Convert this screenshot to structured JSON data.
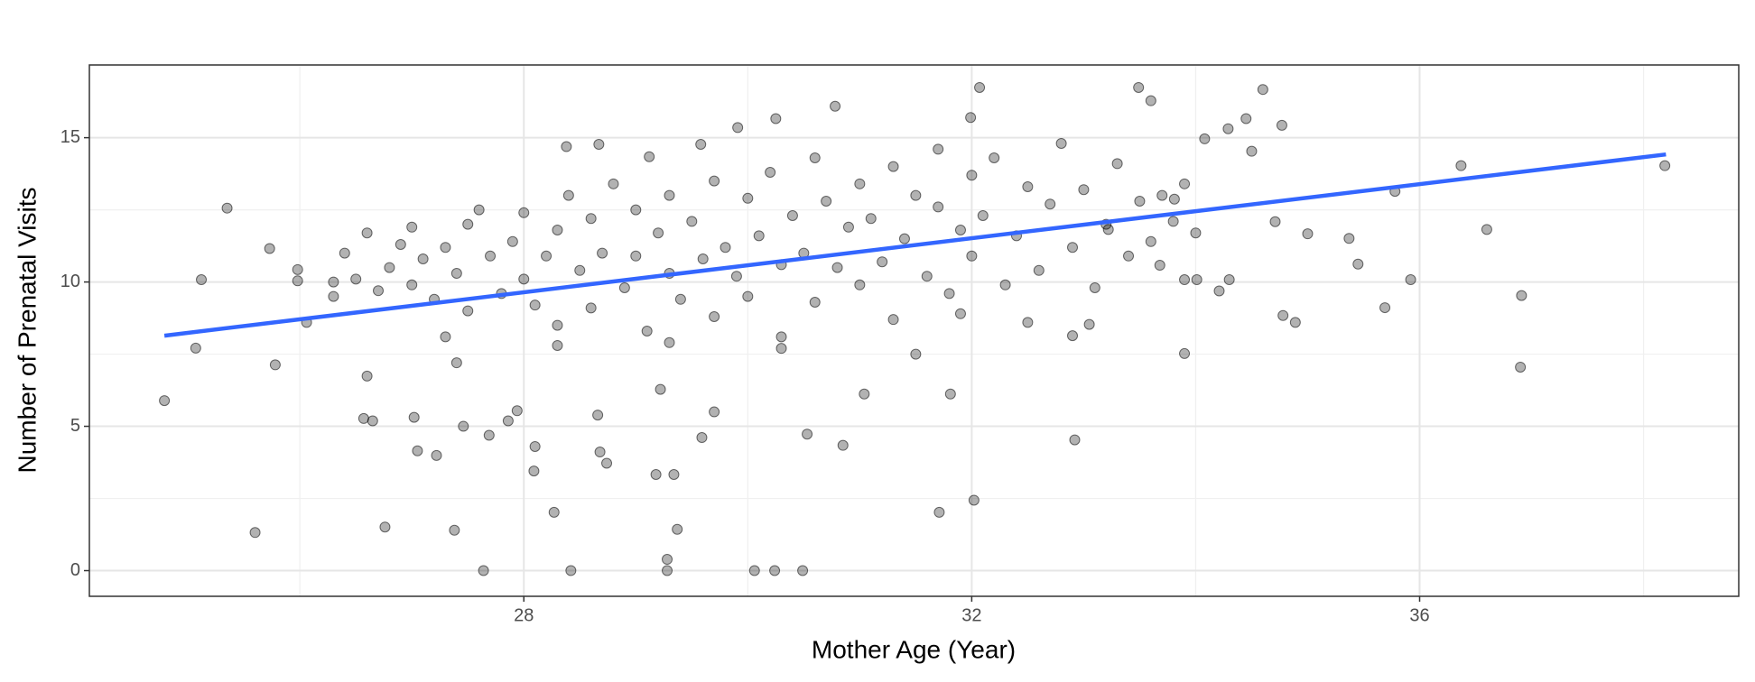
{
  "chart_data": {
    "type": "scatter",
    "x_label": "Mother Age (Year)",
    "y_label": "Number of Prenatal Visits",
    "xlim": [
      24.12,
      38.85
    ],
    "ylim": [
      -0.89,
      17.52
    ],
    "xticks": [
      28,
      32,
      36
    ],
    "yticks": [
      0,
      5,
      10,
      15
    ],
    "grid": true,
    "series": [
      {
        "color": "#000000",
        "x": [
          24.79,
          25.07,
          25.12,
          25.35,
          25.6,
          25.73,
          25.78,
          25.98,
          25.98,
          26.06,
          26.3,
          26.76,
          26.57,
          26.65,
          26.6,
          27.02,
          27.05,
          27.22,
          27.38,
          27.64,
          28.42,
          27.46,
          27.69,
          27.86,
          27.94,
          28.09,
          28.1,
          28.27,
          28.68,
          28.74,
          28.66,
          29.18,
          29.34,
          29.28,
          29.28,
          29.37,
          29.22,
          29.59,
          29.7,
          30.06,
          30.24,
          30.49,
          30.53,
          30.85,
          31.04,
          31.71,
          32.02,
          31.81,
          32.92,
          33.9,
          34.71,
          35.0,
          35.37,
          35.45,
          35.69,
          35.78,
          35.92,
          36.37,
          36.6,
          36.91,
          36.9,
          38.19,
          34.78,
          34.89,
          34.6,
          33.49,
          33.6,
          32.07,
          30.78,
          30.25,
          29.91,
          31.99,
          34.45,
          34.77,
          34.29,
          34.08,
          34.5,
          28.38,
          28.67,
          29.12,
          29.58,
          33.81,
          34.01,
          34.3,
          34.21,
          33.68,
          33.9,
          33.22,
          33.05,
          32.9,
          26.3,
          26.4,
          26.5,
          26.6,
          26.7,
          26.8,
          26.9,
          27.0,
          27.0,
          27.1,
          27.2,
          27.3,
          27.3,
          27.4,
          27.5,
          27.5,
          27.6,
          27.7,
          27.8,
          27.9,
          28.0,
          28.0,
          28.1,
          28.2,
          28.3,
          28.3,
          28.4,
          28.5,
          28.6,
          28.6,
          28.7,
          28.8,
          28.9,
          29.0,
          29.0,
          29.1,
          29.2,
          29.3,
          29.3,
          29.4,
          29.5,
          29.6,
          29.7,
          29.7,
          29.8,
          29.9,
          30.0,
          30.0,
          30.1,
          30.2,
          30.3,
          30.3,
          30.4,
          30.5,
          30.6,
          30.6,
          30.7,
          30.8,
          30.9,
          31.0,
          31.0,
          31.1,
          31.2,
          31.3,
          31.3,
          31.4,
          31.5,
          31.6,
          31.7,
          31.7,
          31.8,
          31.9,
          32.0,
          32.0,
          32.1,
          32.2,
          32.3,
          32.4,
          32.5,
          32.6,
          32.7,
          32.8,
          32.9,
          33.0,
          33.1,
          33.2,
          33.3,
          33.4,
          33.5,
          33.6,
          33.7,
          33.8,
          33.9,
          34.0,
          31.5,
          30.3,
          29.3,
          28.3,
          27.4,
          31.9,
          32.5
        ],
        "values": [
          5.89,
          7.71,
          10.08,
          12.56,
          1.32,
          11.16,
          7.13,
          10.43,
          10.04,
          8.6,
          10.0,
          1.51,
          5.27,
          5.19,
          6.74,
          5.31,
          4.15,
          3.99,
          1.4,
          0,
          0,
          5.0,
          4.69,
          5.19,
          5.54,
          3.45,
          4.3,
          2.02,
          4.11,
          3.72,
          5.39,
          3.33,
          3.33,
          0.39,
          0,
          1.43,
          6.28,
          4.61,
          5.5,
          0,
          0,
          0,
          4.73,
          4.34,
          6.12,
          2.02,
          2.44,
          6.12,
          4.53,
          7.52,
          12.09,
          11.67,
          11.51,
          10.62,
          9.11,
          13.14,
          10.08,
          14.03,
          11.82,
          9.53,
          7.05,
          14.03,
          8.84,
          8.6,
          16.67,
          16.74,
          16.28,
          16.74,
          16.09,
          15.66,
          15.35,
          15.7,
          15.66,
          15.43,
          15.31,
          14.96,
          14.53,
          14.69,
          14.77,
          14.34,
          14.77,
          12.87,
          10.08,
          10.08,
          9.69,
          10.58,
          10.08,
          11.82,
          8.53,
          8.14,
          9.5,
          11.0,
          10.1,
          11.7,
          9.7,
          10.5,
          11.3,
          9.9,
          11.9,
          10.8,
          9.4,
          11.2,
          8.1,
          10.3,
          12.0,
          9.0,
          12.5,
          10.9,
          9.6,
          11.4,
          10.1,
          12.4,
          9.2,
          10.9,
          11.8,
          8.5,
          13.0,
          10.4,
          9.1,
          12.2,
          11.0,
          13.4,
          9.8,
          10.9,
          12.5,
          8.3,
          11.7,
          10.3,
          13.0,
          9.4,
          12.1,
          10.8,
          13.5,
          8.8,
          11.2,
          10.2,
          12.9,
          9.5,
          11.6,
          13.8,
          10.6,
          8.1,
          12.3,
          11.0,
          14.3,
          9.3,
          12.8,
          10.5,
          11.9,
          13.4,
          9.9,
          12.2,
          10.7,
          14.0,
          8.7,
          11.5,
          13.0,
          10.2,
          12.6,
          14.6,
          9.6,
          11.8,
          13.7,
          10.9,
          12.3,
          14.3,
          9.9,
          11.6,
          13.3,
          10.4,
          12.7,
          14.8,
          11.2,
          13.2,
          9.8,
          12.0,
          14.1,
          10.9,
          12.8,
          11.4,
          13.0,
          12.1,
          13.4,
          11.7,
          7.5,
          7.7,
          7.9,
          7.8,
          7.2,
          8.9,
          8.6
        ]
      }
    ],
    "fit": {
      "color": "#3366FF",
      "x": [
        24.79,
        38.2
      ],
      "values": [
        8.14,
        14.42
      ]
    }
  }
}
